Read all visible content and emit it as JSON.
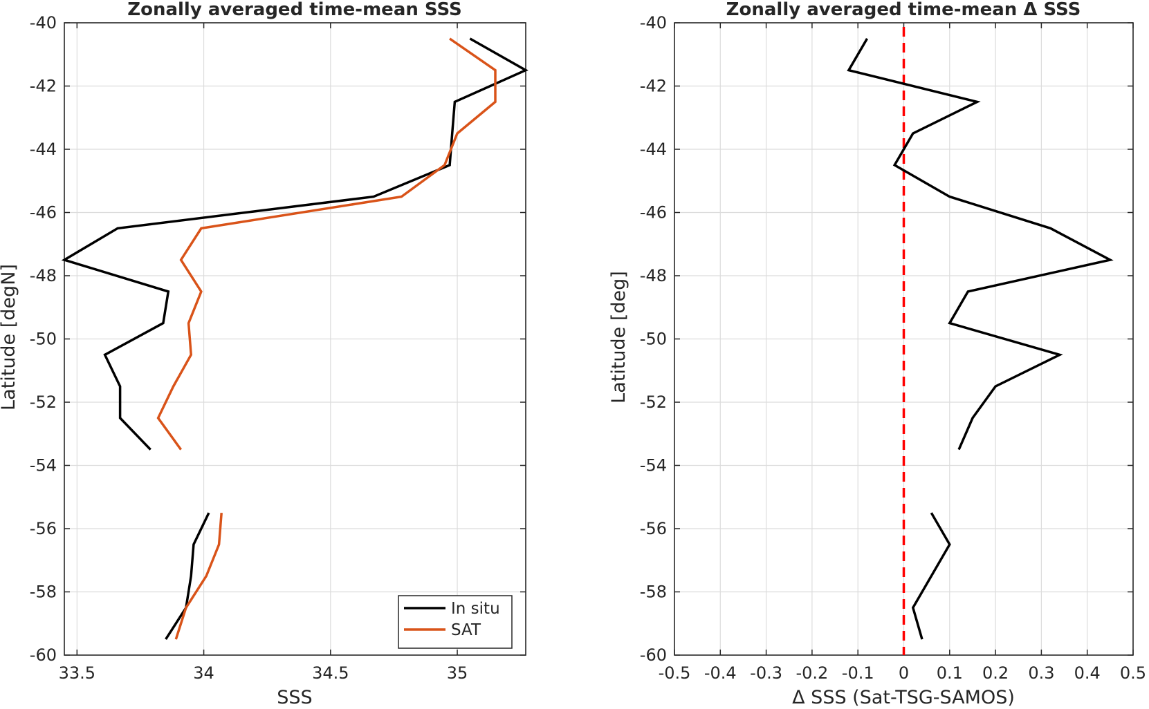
{
  "chart_data": [
    {
      "type": "line",
      "title": "Zonally averaged time-mean SSS",
      "xlabel": "SSS",
      "ylabel": "Latitude [degN]",
      "xlim": [
        33.45,
        35.27
      ],
      "ylim": [
        -60,
        -40
      ],
      "xticks": [
        33.5,
        34,
        34.5,
        35
      ],
      "xtick_labels": [
        "33.5",
        "34",
        "34.5",
        "35"
      ],
      "yticks": [
        -40,
        -42,
        -44,
        -46,
        -48,
        -50,
        -52,
        -54,
        -56,
        -58,
        -60
      ],
      "ytick_labels": [
        "-40",
        "-42",
        "-44",
        "-46",
        "-48",
        "-50",
        "-52",
        "-54",
        "-56",
        "-58",
        "-60"
      ],
      "grid": true,
      "legend_position": "bottom-right",
      "series": [
        {
          "name": "In situ",
          "color": "#000000",
          "points": [
            [
              35.05,
              -40.5
            ],
            [
              35.27,
              -41.5
            ],
            [
              34.99,
              -42.5
            ],
            [
              34.98,
              -43.5
            ],
            [
              34.97,
              -44.5
            ],
            [
              34.67,
              -45.5
            ],
            [
              33.66,
              -46.5
            ],
            [
              33.45,
              -47.5
            ],
            [
              33.86,
              -48.5
            ],
            [
              33.84,
              -49.5
            ],
            [
              33.61,
              -50.5
            ],
            [
              33.67,
              -51.5
            ],
            [
              33.67,
              -52.5
            ],
            [
              33.79,
              -53.5
            ],
            null,
            [
              34.02,
              -55.5
            ],
            [
              33.96,
              -56.5
            ],
            [
              33.95,
              -57.5
            ],
            [
              33.93,
              -58.5
            ],
            [
              33.85,
              -59.5
            ]
          ]
        },
        {
          "name": "SAT",
          "color": "#d95319",
          "points": [
            [
              34.97,
              -40.5
            ],
            [
              35.15,
              -41.5
            ],
            [
              35.15,
              -42.5
            ],
            [
              35.0,
              -43.5
            ],
            [
              34.95,
              -44.5
            ],
            [
              34.78,
              -45.5
            ],
            [
              33.99,
              -46.5
            ],
            [
              33.91,
              -47.5
            ],
            [
              33.99,
              -48.5
            ],
            [
              33.94,
              -49.5
            ],
            [
              33.95,
              -50.5
            ],
            [
              33.88,
              -51.5
            ],
            [
              33.82,
              -52.5
            ],
            [
              33.91,
              -53.5
            ],
            null,
            [
              34.07,
              -55.5
            ],
            [
              34.06,
              -56.5
            ],
            [
              34.01,
              -57.5
            ],
            [
              33.93,
              -58.5
            ],
            [
              33.89,
              -59.5
            ]
          ]
        }
      ]
    },
    {
      "type": "line",
      "title": "Zonally averaged time-mean Δ SSS",
      "xlabel": "Δ SSS (Sat-TSG-SAMOS)",
      "ylabel": "Latitude [deg]",
      "xlim": [
        -0.5,
        0.5
      ],
      "ylim": [
        -60,
        -40
      ],
      "xticks": [
        -0.5,
        -0.4,
        -0.3,
        -0.2,
        -0.1,
        0,
        0.1,
        0.2,
        0.3,
        0.4,
        0.5
      ],
      "xtick_labels": [
        "-0.5",
        "-0.4",
        "-0.3",
        "-0.2",
        "-0.1",
        "0",
        "0.1",
        "0.2",
        "0.3",
        "0.4",
        "0.5"
      ],
      "yticks": [
        -40,
        -42,
        -44,
        -46,
        -48,
        -50,
        -52,
        -54,
        -56,
        -58,
        -60
      ],
      "ytick_labels": [
        "-40",
        "-42",
        "-44",
        "-46",
        "-48",
        "-50",
        "-52",
        "-54",
        "-56",
        "-58",
        "-60"
      ],
      "grid": true,
      "reference_line": {
        "x": 0,
        "color": "#ff0000",
        "style": "dashed"
      },
      "series": [
        {
          "color": "#000000",
          "points": [
            [
              -0.08,
              -40.5
            ],
            [
              -0.12,
              -41.5
            ],
            [
              0.16,
              -42.5
            ],
            [
              0.02,
              -43.5
            ],
            [
              -0.02,
              -44.5
            ],
            [
              0.1,
              -45.5
            ],
            [
              0.32,
              -46.5
            ],
            [
              0.45,
              -47.5
            ],
            [
              0.14,
              -48.5
            ],
            [
              0.1,
              -49.5
            ],
            [
              0.34,
              -50.5
            ],
            [
              0.2,
              -51.5
            ],
            [
              0.15,
              -52.5
            ],
            [
              0.12,
              -53.5
            ],
            null,
            [
              0.06,
              -55.5
            ],
            [
              0.1,
              -56.5
            ],
            [
              0.06,
              -57.5
            ],
            [
              0.02,
              -58.5
            ],
            [
              0.04,
              -59.5
            ]
          ]
        }
      ]
    }
  ]
}
